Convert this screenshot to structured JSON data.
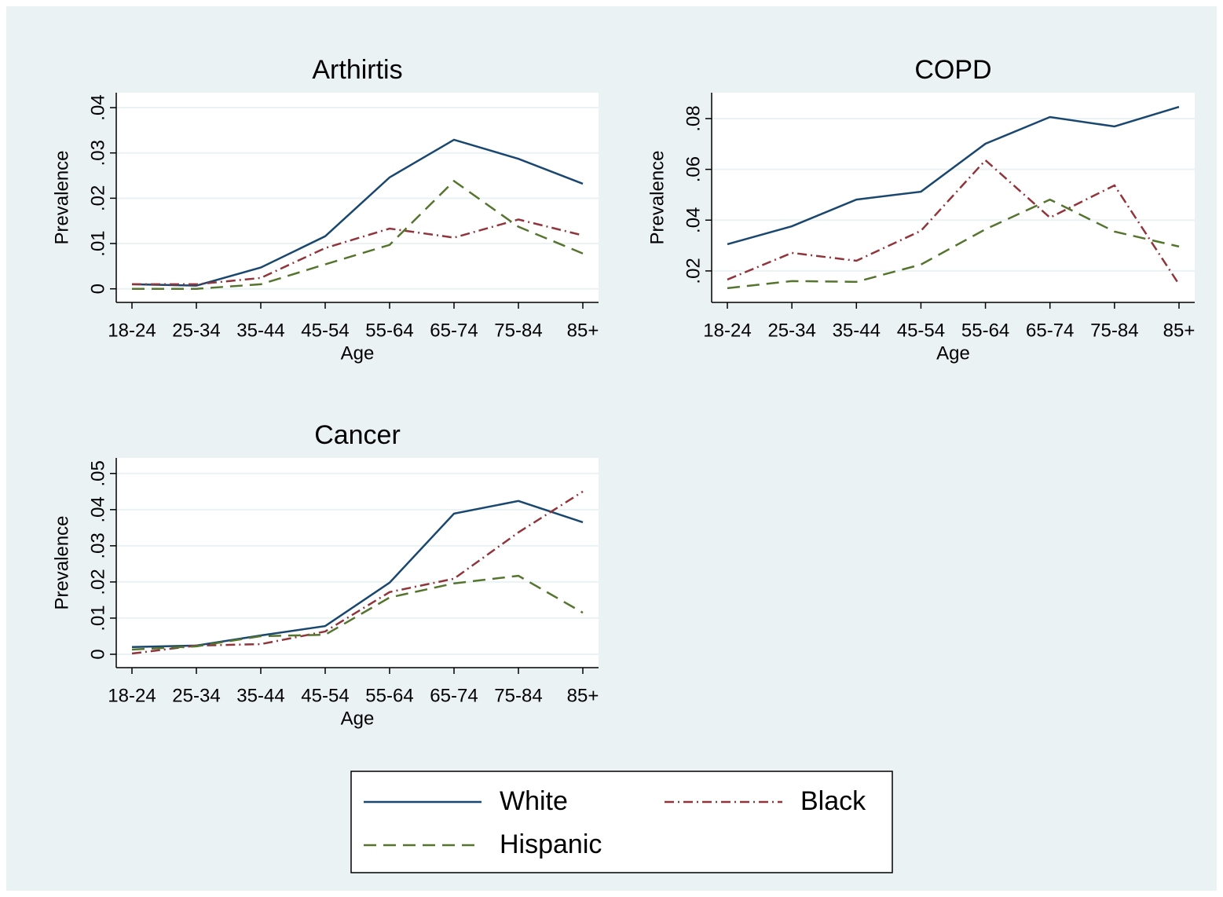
{
  "chart_data": [
    {
      "type": "line",
      "title": "Arthirtis",
      "x_label": "Age",
      "y_label": "Prevalence",
      "categories": [
        "18-24",
        "25-34",
        "35-44",
        "45-54",
        "55-64",
        "65-74",
        "75-84",
        "85+"
      ],
      "ylim": [
        -0.003,
        0.0433
      ],
      "yticks": [
        0,
        {
          "value": 0.01,
          "label": ".01"
        },
        {
          "value": 0.02,
          "label": ".02"
        },
        {
          "value": 0.03,
          "label": ".03"
        },
        {
          "value": 0.04,
          "label": ".04"
        }
      ],
      "grid": true,
      "legend": "bottom",
      "series": [
        {
          "name": "White",
          "color": "#1a476f",
          "values": [
            0.001,
            0.0007,
            0.0047,
            0.0116,
            0.0246,
            0.0329,
            0.0287,
            0.0232
          ]
        },
        {
          "name": "Black",
          "color": "#90353b",
          "values": [
            0.001,
            0.001,
            0.0024,
            0.009,
            0.0133,
            0.0113,
            0.0153,
            0.0118
          ]
        },
        {
          "name": "Hispanic",
          "color": "#55752f",
          "values": [
            0,
            0,
            0.001,
            0.0054,
            0.0097,
            0.0238,
            0.0137,
            0.0078
          ]
        }
      ]
    },
    {
      "type": "line",
      "title": "COPD",
      "x_label": "Age",
      "y_label": "Prevalence",
      "categories": [
        "18-24",
        "25-34",
        "35-44",
        "45-54",
        "55-64",
        "65-74",
        "75-84",
        "85+"
      ],
      "ylim": [
        0.0076,
        0.0902
      ],
      "yticks": [
        {
          "value": 0.02,
          "label": ".02"
        },
        {
          "value": 0.04,
          "label": ".04"
        },
        {
          "value": 0.06,
          "label": ".06"
        },
        {
          "value": 0.08,
          "label": ".08"
        }
      ],
      "grid": true,
      "series": [
        {
          "name": "White",
          "color": "#1a476f",
          "values": [
            0.0305,
            0.0376,
            0.0481,
            0.0512,
            0.0701,
            0.0806,
            0.0769,
            0.0846
          ]
        },
        {
          "name": "Black",
          "color": "#90353b",
          "values": [
            0.0166,
            0.0271,
            0.024,
            0.0358,
            0.0636,
            0.041,
            0.0537,
            0.0147
          ]
        },
        {
          "name": "Hispanic",
          "color": "#55752f",
          "values": [
            0.0132,
            0.016,
            0.0157,
            0.0225,
            0.0364,
            0.0481,
            0.0355,
            0.0296
          ]
        }
      ]
    },
    {
      "type": "line",
      "title": "Cancer",
      "x_label": "Age",
      "y_label": "Prevalence",
      "categories": [
        "18-24",
        "25-34",
        "35-44",
        "45-54",
        "55-64",
        "65-74",
        "75-84",
        "85+"
      ],
      "ylim": [
        -0.0037,
        0.0543
      ],
      "yticks": [
        0,
        {
          "value": 0.01,
          "label": ".01"
        },
        {
          "value": 0.02,
          "label": ".02"
        },
        {
          "value": 0.03,
          "label": ".03"
        },
        {
          "value": 0.04,
          "label": ".04"
        },
        {
          "value": 0.05,
          "label": ".05"
        }
      ],
      "grid": true,
      "series": [
        {
          "name": "White",
          "color": "#1a476f",
          "values": [
            0.002,
            0.0024,
            0.0052,
            0.0078,
            0.0198,
            0.0389,
            0.0424,
            0.0365
          ]
        },
        {
          "name": "Black",
          "color": "#90353b",
          "values": [
            0.0002,
            0.0024,
            0.0028,
            0.0063,
            0.0172,
            0.0209,
            0.0337,
            0.045
          ]
        },
        {
          "name": "Hispanic",
          "color": "#55752f",
          "values": [
            0.0013,
            0.0022,
            0.005,
            0.0054,
            0.0157,
            0.0196,
            0.0217,
            0.0115
          ]
        }
      ]
    }
  ]
}
